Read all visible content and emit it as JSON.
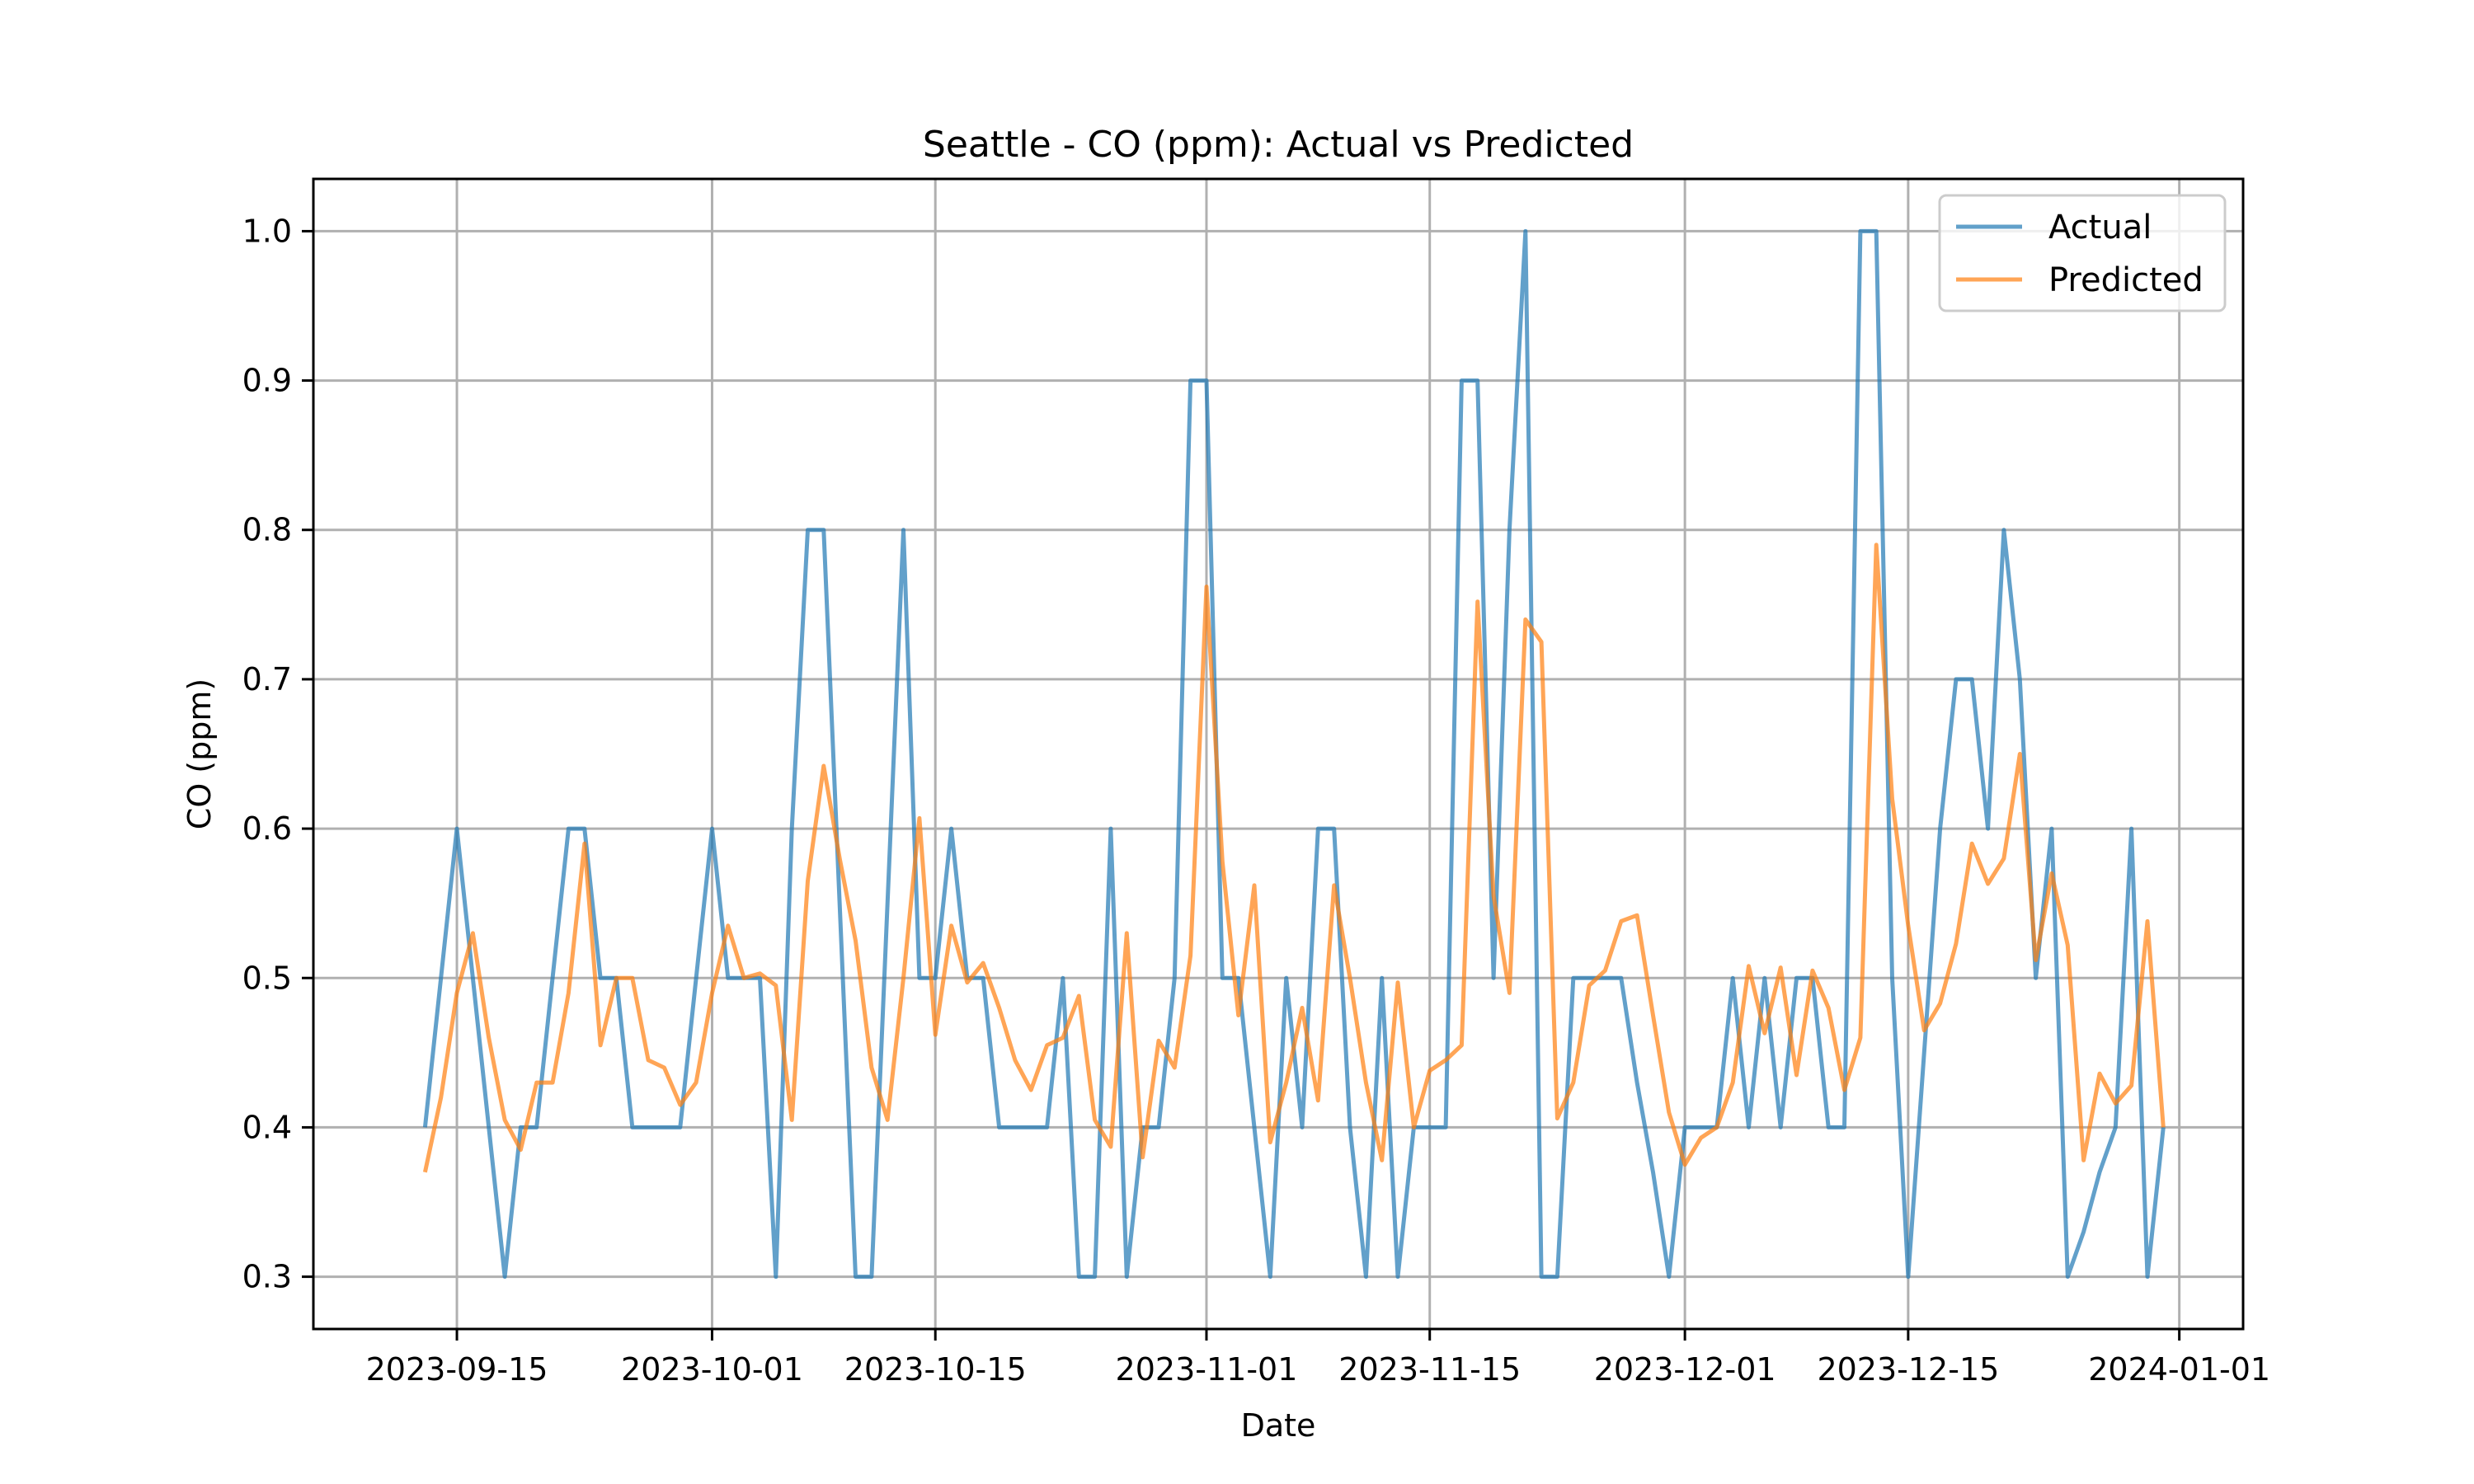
{
  "chart_data": {
    "type": "line",
    "title": "Seattle - CO (ppm): Actual vs Predicted",
    "xlabel": "Date",
    "ylabel": "CO (ppm)",
    "x_ticks": [
      "2023-09-15",
      "2023-10-01",
      "2023-10-15",
      "2023-11-01",
      "2023-11-15",
      "2023-12-01",
      "2023-12-15",
      "2024-01-01"
    ],
    "y_ticks": [
      0.3,
      0.4,
      0.5,
      0.6,
      0.7,
      0.8,
      0.9,
      1.0
    ],
    "xlim": [
      "2023-09-06",
      "2024-01-05"
    ],
    "ylim": [
      0.265,
      1.035
    ],
    "grid": true,
    "legend_position": "top-right",
    "colors": {
      "Actual": "#1f77b4",
      "Predicted": "#ff7f0e"
    },
    "series": [
      {
        "name": "Actual",
        "points": [
          [
            "2023-09-13",
            0.4
          ],
          [
            "2023-09-15",
            0.6
          ],
          [
            "2023-09-18",
            0.3
          ],
          [
            "2023-09-19",
            0.4
          ],
          [
            "2023-09-20",
            0.4
          ],
          [
            "2023-09-22",
            0.6
          ],
          [
            "2023-09-23",
            0.6
          ],
          [
            "2023-09-24",
            0.5
          ],
          [
            "2023-09-25",
            0.5
          ],
          [
            "2023-09-26",
            0.4
          ],
          [
            "2023-09-29",
            0.4
          ],
          [
            "2023-10-01",
            0.6
          ],
          [
            "2023-10-02",
            0.5
          ],
          [
            "2023-10-04",
            0.5
          ],
          [
            "2023-10-05",
            0.3
          ],
          [
            "2023-10-06",
            0.6
          ],
          [
            "2023-10-07",
            0.8
          ],
          [
            "2023-10-08",
            0.8
          ],
          [
            "2023-10-10",
            0.3
          ],
          [
            "2023-10-11",
            0.3
          ],
          [
            "2023-10-13",
            0.8
          ],
          [
            "2023-10-14",
            0.5
          ],
          [
            "2023-10-15",
            0.5
          ],
          [
            "2023-10-16",
            0.6
          ],
          [
            "2023-10-17",
            0.5
          ],
          [
            "2023-10-18",
            0.5
          ],
          [
            "2023-10-19",
            0.4
          ],
          [
            "2023-10-22",
            0.4
          ],
          [
            "2023-10-23",
            0.5
          ],
          [
            "2023-10-24",
            0.3
          ],
          [
            "2023-10-25",
            0.3
          ],
          [
            "2023-10-26",
            0.6
          ],
          [
            "2023-10-27",
            0.3
          ],
          [
            "2023-10-28",
            0.4
          ],
          [
            "2023-10-29",
            0.4
          ],
          [
            "2023-10-30",
            0.5
          ],
          [
            "2023-10-31",
            0.9
          ],
          [
            "2023-11-01",
            0.9
          ],
          [
            "2023-11-02",
            0.5
          ],
          [
            "2023-11-03",
            0.5
          ],
          [
            "2023-11-05",
            0.3
          ],
          [
            "2023-11-06",
            0.5
          ],
          [
            "2023-11-07",
            0.4
          ],
          [
            "2023-11-08",
            0.6
          ],
          [
            "2023-11-09",
            0.6
          ],
          [
            "2023-11-10",
            0.4
          ],
          [
            "2023-11-11",
            0.3
          ],
          [
            "2023-11-12",
            0.5
          ],
          [
            "2023-11-13",
            0.3
          ],
          [
            "2023-11-14",
            0.4
          ],
          [
            "2023-11-16",
            0.4
          ],
          [
            "2023-11-17",
            0.9
          ],
          [
            "2023-11-18",
            0.9
          ],
          [
            "2023-11-19",
            0.5
          ],
          [
            "2023-11-20",
            0.8
          ],
          [
            "2023-11-21",
            1.0
          ],
          [
            "2023-11-22",
            0.3
          ],
          [
            "2023-11-23",
            0.3
          ],
          [
            "2023-11-24",
            0.5
          ],
          [
            "2023-11-27",
            0.5
          ],
          [
            "2023-11-28",
            0.43
          ],
          [
            "2023-11-29",
            0.37
          ],
          [
            "2023-11-30",
            0.3
          ],
          [
            "2023-12-01",
            0.4
          ],
          [
            "2023-12-03",
            0.4
          ],
          [
            "2023-12-04",
            0.5
          ],
          [
            "2023-12-05",
            0.4
          ],
          [
            "2023-12-06",
            0.5
          ],
          [
            "2023-12-07",
            0.4
          ],
          [
            "2023-12-08",
            0.5
          ],
          [
            "2023-12-09",
            0.5
          ],
          [
            "2023-12-10",
            0.4
          ],
          [
            "2023-12-11",
            0.4
          ],
          [
            "2023-12-12",
            1.0
          ],
          [
            "2023-12-13",
            1.0
          ],
          [
            "2023-12-14",
            0.5
          ],
          [
            "2023-12-15",
            0.3
          ],
          [
            "2023-12-17",
            0.6
          ],
          [
            "2023-12-18",
            0.7
          ],
          [
            "2023-12-19",
            0.7
          ],
          [
            "2023-12-20",
            0.6
          ],
          [
            "2023-12-21",
            0.8
          ],
          [
            "2023-12-22",
            0.7
          ],
          [
            "2023-12-23",
            0.5
          ],
          [
            "2023-12-24",
            0.6
          ],
          [
            "2023-12-25",
            0.3
          ],
          [
            "2023-12-26",
            0.33
          ],
          [
            "2023-12-27",
            0.37
          ],
          [
            "2023-12-28",
            0.4
          ],
          [
            "2023-12-29",
            0.6
          ],
          [
            "2023-12-30",
            0.3
          ],
          [
            "2023-12-31",
            0.4
          ]
        ]
      },
      {
        "name": "Predicted",
        "points": [
          [
            "2023-09-13",
            0.37
          ],
          [
            "2023-09-14",
            0.42
          ],
          [
            "2023-09-15",
            0.49
          ],
          [
            "2023-09-16",
            0.53
          ],
          [
            "2023-09-17",
            0.46
          ],
          [
            "2023-09-18",
            0.405
          ],
          [
            "2023-09-19",
            0.385
          ],
          [
            "2023-09-20",
            0.43
          ],
          [
            "2023-09-21",
            0.43
          ],
          [
            "2023-09-22",
            0.49
          ],
          [
            "2023-09-23",
            0.59
          ],
          [
            "2023-09-24",
            0.455
          ],
          [
            "2023-09-25",
            0.5
          ],
          [
            "2023-09-26",
            0.5
          ],
          [
            "2023-09-27",
            0.445
          ],
          [
            "2023-09-28",
            0.44
          ],
          [
            "2023-09-29",
            0.415
          ],
          [
            "2023-09-30",
            0.43
          ],
          [
            "2023-10-01",
            0.49
          ],
          [
            "2023-10-02",
            0.535
          ],
          [
            "2023-10-03",
            0.5
          ],
          [
            "2023-10-04",
            0.503
          ],
          [
            "2023-10-05",
            0.495
          ],
          [
            "2023-10-06",
            0.405
          ],
          [
            "2023-10-07",
            0.565
          ],
          [
            "2023-10-08",
            0.642
          ],
          [
            "2023-10-09",
            0.58
          ],
          [
            "2023-10-10",
            0.525
          ],
          [
            "2023-10-11",
            0.44
          ],
          [
            "2023-10-12",
            0.405
          ],
          [
            "2023-10-13",
            0.5
          ],
          [
            "2023-10-14",
            0.607
          ],
          [
            "2023-10-15",
            0.462
          ],
          [
            "2023-10-16",
            0.535
          ],
          [
            "2023-10-17",
            0.497
          ],
          [
            "2023-10-18",
            0.51
          ],
          [
            "2023-10-19",
            0.48
          ],
          [
            "2023-10-20",
            0.445
          ],
          [
            "2023-10-21",
            0.425
          ],
          [
            "2023-10-22",
            0.455
          ],
          [
            "2023-10-23",
            0.46
          ],
          [
            "2023-10-24",
            0.488
          ],
          [
            "2023-10-25",
            0.405
          ],
          [
            "2023-10-26",
            0.387
          ],
          [
            "2023-10-27",
            0.53
          ],
          [
            "2023-10-28",
            0.38
          ],
          [
            "2023-10-29",
            0.458
          ],
          [
            "2023-10-30",
            0.44
          ],
          [
            "2023-10-31",
            0.515
          ],
          [
            "2023-11-01",
            0.762
          ],
          [
            "2023-11-02",
            0.578
          ],
          [
            "2023-11-03",
            0.475
          ],
          [
            "2023-11-04",
            0.562
          ],
          [
            "2023-11-05",
            0.39
          ],
          [
            "2023-11-06",
            0.43
          ],
          [
            "2023-11-07",
            0.48
          ],
          [
            "2023-11-08",
            0.418
          ],
          [
            "2023-11-09",
            0.562
          ],
          [
            "2023-11-10",
            0.5
          ],
          [
            "2023-11-11",
            0.43
          ],
          [
            "2023-11-12",
            0.378
          ],
          [
            "2023-11-13",
            0.497
          ],
          [
            "2023-11-14",
            0.4
          ],
          [
            "2023-11-15",
            0.438
          ],
          [
            "2023-11-16",
            0.445
          ],
          [
            "2023-11-17",
            0.455
          ],
          [
            "2023-11-18",
            0.752
          ],
          [
            "2023-11-19",
            0.555
          ],
          [
            "2023-11-20",
            0.49
          ],
          [
            "2023-11-21",
            0.74
          ],
          [
            "2023-11-22",
            0.725
          ],
          [
            "2023-11-23",
            0.406
          ],
          [
            "2023-11-24",
            0.43
          ],
          [
            "2023-11-25",
            0.495
          ],
          [
            "2023-11-26",
            0.505
          ],
          [
            "2023-11-27",
            0.538
          ],
          [
            "2023-11-28",
            0.542
          ],
          [
            "2023-11-29",
            0.475
          ],
          [
            "2023-11-30",
            0.41
          ],
          [
            "2023-12-01",
            0.375
          ],
          [
            "2023-12-02",
            0.393
          ],
          [
            "2023-12-03",
            0.4
          ],
          [
            "2023-12-04",
            0.43
          ],
          [
            "2023-12-05",
            0.508
          ],
          [
            "2023-12-06",
            0.463
          ],
          [
            "2023-12-07",
            0.507
          ],
          [
            "2023-12-08",
            0.435
          ],
          [
            "2023-12-09",
            0.505
          ],
          [
            "2023-12-10",
            0.48
          ],
          [
            "2023-12-11",
            0.425
          ],
          [
            "2023-12-12",
            0.46
          ],
          [
            "2023-12-13",
            0.79
          ],
          [
            "2023-12-14",
            0.62
          ],
          [
            "2023-12-15",
            0.535
          ],
          [
            "2023-12-16",
            0.465
          ],
          [
            "2023-12-17",
            0.483
          ],
          [
            "2023-12-18",
            0.523
          ],
          [
            "2023-12-19",
            0.59
          ],
          [
            "2023-12-20",
            0.563
          ],
          [
            "2023-12-21",
            0.58
          ],
          [
            "2023-12-22",
            0.65
          ],
          [
            "2023-12-23",
            0.512
          ],
          [
            "2023-12-24",
            0.57
          ],
          [
            "2023-12-25",
            0.522
          ],
          [
            "2023-12-26",
            0.378
          ],
          [
            "2023-12-27",
            0.436
          ],
          [
            "2023-12-28",
            0.416
          ],
          [
            "2023-12-29",
            0.428
          ],
          [
            "2023-12-30",
            0.538
          ],
          [
            "2023-12-31",
            0.4
          ]
        ]
      }
    ]
  }
}
